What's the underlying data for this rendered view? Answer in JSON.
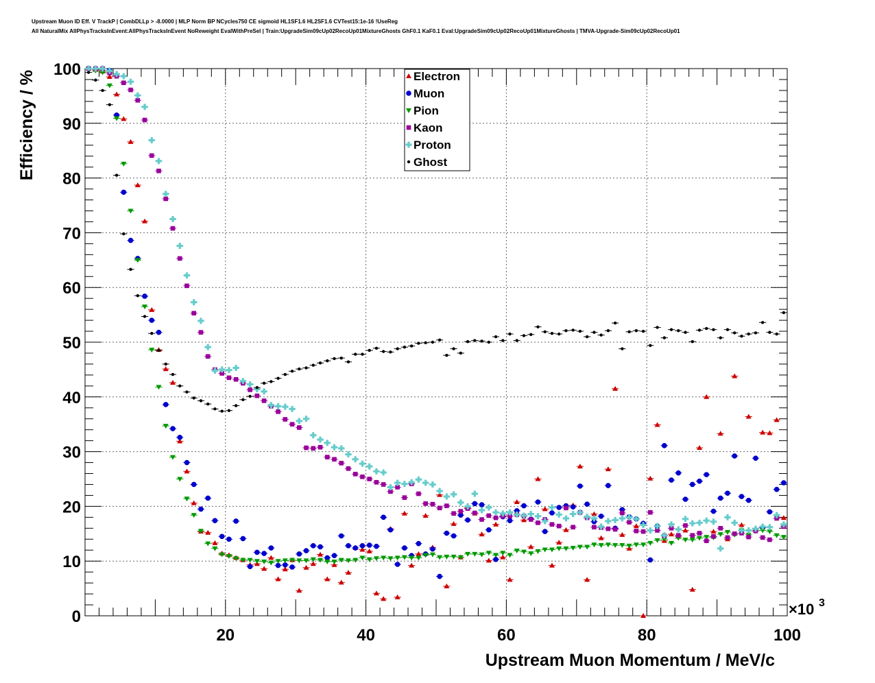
{
  "header": {
    "title_line1": "Upstream Muon ID Eff. V TrackP | CombDLLp > -8.0000 | MLP Norm BP NCycles750 CE sigmoid HL1SF1.6 HL2SF1.6 CVTest15:1e-16 !UseReg",
    "title_line2": "All NaturalMix AllPhysTracksInEvent:AllPhysTracksInEvent NoReweight EvalWithPreSel | Train:UpgradeSim09cUp02RecoUp01MixtureGhosts GhF0.1 KaF0.1 Eval:UpgradeSim09cUp02RecoUp01MixtureGhosts | TMVA-Upgrade-Sim09cUp02RecoUp01"
  },
  "chart_data": {
    "type": "scatter",
    "xlabel": "Upstream Muon Momentum / MeV/c",
    "ylabel": "Efficiency / %",
    "x_multiplier": "×10^3",
    "xlim": [
      0,
      100
    ],
    "ylim": [
      0,
      100
    ],
    "x_ticks": [
      20,
      40,
      60,
      80,
      100
    ],
    "y_ticks": [
      0,
      10,
      20,
      30,
      40,
      50,
      60,
      70,
      80,
      90,
      100
    ],
    "grid": true,
    "legend_position": "top-center",
    "x": [
      0.5,
      1.5,
      2.5,
      3.5,
      4.5,
      5.5,
      6.5,
      7.5,
      8.5,
      9.5,
      10.5,
      11.5,
      12.5,
      13.5,
      14.5,
      15.5,
      16.5,
      17.5,
      18.5,
      19.5,
      20.5,
      21.5,
      22.5,
      23.5,
      24.5,
      25.5,
      26.5,
      27.5,
      28.5,
      29.5,
      30.5,
      31.5,
      32.5,
      33.5,
      34.5,
      35.5,
      36.5,
      37.5,
      38.5,
      39.5,
      40.5,
      41.5,
      42.5,
      43.5,
      44.5,
      45.5,
      46.5,
      47.5,
      48.5,
      49.5,
      50.5,
      51.5,
      52.5,
      53.5,
      54.5,
      55.5,
      56.5,
      57.5,
      58.5,
      59.5,
      60.5,
      61.5,
      62.5,
      63.5,
      64.5,
      65.5,
      66.5,
      67.5,
      68.5,
      69.5,
      70.5,
      71.5,
      72.5,
      73.5,
      74.5,
      75.5,
      76.5,
      77.5,
      78.5,
      79.5,
      80.5,
      81.5,
      82.5,
      83.5,
      84.5,
      85.5,
      86.5,
      87.5,
      88.5,
      89.5,
      90.5,
      91.5,
      92.5,
      93.5,
      94.5,
      95.5,
      96.5,
      97.5,
      98.5,
      99.5
    ],
    "series": [
      {
        "name": "Electron",
        "color": "#cc0000",
        "marker": "triangle-up",
        "values": [
          100,
          99.8,
          99.5,
          98.5,
          95.3,
          90.8,
          86.6,
          78.7,
          72.1,
          55.9,
          48.6,
          45.1,
          42.6,
          31.9,
          26.4,
          20.6,
          15.4,
          15.2,
          13.3,
          11.4,
          11.1,
          10.6,
          10.2,
          9.3,
          9.5,
          8.6,
          10.6,
          6.7,
          8.5,
          10.2,
          4.6,
          8.8,
          9.5,
          11.2,
          6.7,
          9.3,
          6.1,
          7.9,
          12.4,
          12.1,
          11.8,
          4.1,
          3.1,
          15.9,
          3.4,
          18.7,
          9.2,
          11.3,
          18.3,
          12.5,
          22.1,
          5.4,
          16.8,
          10.7,
          19.7,
          18.7,
          14.9,
          10.1,
          16.7,
          10.7,
          6.6,
          20.8,
          17.5,
          12.6,
          25.0,
          19.5,
          9.2,
          13.4,
          15.7,
          20.2,
          27.3,
          6.6,
          18.6,
          14.2,
          26.8,
          41.5,
          14.8,
          12.3,
          16.4,
          0,
          25.1,
          34.9,
          13.7,
          14.9,
          14.5,
          15.6,
          4.8,
          30.7,
          40.0,
          15.4,
          33.3,
          14.0,
          43.8,
          16.6,
          36.4,
          16.0,
          33.5,
          33.4,
          35.8,
          17.9
        ]
      },
      {
        "name": "Muon",
        "color": "#0000cc",
        "marker": "circle",
        "values": [
          100,
          100,
          100,
          99.7,
          91.5,
          77.4,
          68.6,
          65.3,
          58.4,
          54.0,
          51.8,
          38.6,
          34.2,
          32.6,
          28.0,
          24.0,
          19.5,
          21.5,
          17.4,
          14.5,
          14.0,
          17.3,
          14.1,
          9.0,
          11.6,
          11.4,
          12.4,
          9.2,
          9.3,
          8.9,
          11.3,
          11.9,
          12.8,
          12.6,
          10.6,
          11.0,
          14.6,
          12.8,
          12.4,
          12.8,
          12.9,
          12.7,
          18.0,
          15.7,
          9.4,
          12.4,
          11.0,
          13.2,
          11.3,
          12.2,
          7.2,
          15.1,
          14.6,
          18.4,
          17.5,
          20.5,
          20.3,
          15.7,
          10.3,
          18.1,
          17.4,
          19.2,
          20.1,
          17.7,
          20.8,
          15.4,
          18.8,
          19.8,
          20.1,
          19.9,
          23.7,
          20.4,
          17.2,
          18.2,
          23.8,
          16.0,
          19.4,
          18.1,
          17.7,
          16.9,
          10.2,
          16.4,
          31.1,
          24.8,
          26.1,
          21.3,
          24.0,
          24.6,
          25.8,
          19.1,
          21.5,
          22.4,
          29.2,
          21.8,
          21.1,
          28.8,
          16.1,
          19.0,
          23.1,
          24.3
        ]
      },
      {
        "name": "Pion",
        "color": "#009900",
        "marker": "triangle-down",
        "values": [
          100,
          99.6,
          99.3,
          96.9,
          90.9,
          82.6,
          74.0,
          65.0,
          56.5,
          48.6,
          41.8,
          34.7,
          29.0,
          25.0,
          21.4,
          18.4,
          15.5,
          13.2,
          12.3,
          11.2,
          10.9,
          10.5,
          10.2,
          10.2,
          10.0,
          9.9,
          9.7,
          10.0,
          10.1,
          10.2,
          10.1,
          10.1,
          10.3,
          10.2,
          9.9,
          9.9,
          10.2,
          10.1,
          10.2,
          10.6,
          10.3,
          10.5,
          10.6,
          10.5,
          10.6,
          10.7,
          10.6,
          10.6,
          11.1,
          11.2,
          10.7,
          10.8,
          10.8,
          10.7,
          11.3,
          11.3,
          11.2,
          11.5,
          11.1,
          11.5,
          11.1,
          11.9,
          11.7,
          11.4,
          11.8,
          12.1,
          12.1,
          12.3,
          12.3,
          12.4,
          12.6,
          12.6,
          13.0,
          12.9,
          13.0,
          12.9,
          12.9,
          12.8,
          13.0,
          13.0,
          13.3,
          13.8,
          14.0,
          13.3,
          14.2,
          13.9,
          13.9,
          14.2,
          14.4,
          14.3,
          14.9,
          15.3,
          14.8,
          15.6,
          14.8,
          15.5,
          15.6,
          15.4,
          14.7,
          14.4
        ]
      },
      {
        "name": "Kaon",
        "color": "#990099",
        "marker": "square",
        "values": [
          100,
          100,
          100,
          99.2,
          98.6,
          97.4,
          96.1,
          94.2,
          90.6,
          84.1,
          81.3,
          76.2,
          70.8,
          65.3,
          60.3,
          55.3,
          51.8,
          47.4,
          45.0,
          44.3,
          43.5,
          43.2,
          42.5,
          41.3,
          40.2,
          39.3,
          38.3,
          37.3,
          35.9,
          35.0,
          34.4,
          30.7,
          30.6,
          30.8,
          29.0,
          28.6,
          27.9,
          26.9,
          25.9,
          25.4,
          25.0,
          24.4,
          24.0,
          22.7,
          23.5,
          21.6,
          24.1,
          22.3,
          20.5,
          20.4,
          19.7,
          20.1,
          18.7,
          19.1,
          19.6,
          18.8,
          17.6,
          18.3,
          17.9,
          18.2,
          18.2,
          18.5,
          18.2,
          17.6,
          17.0,
          17.6,
          16.7,
          16.4,
          19.7,
          16.2,
          18.9,
          17.9,
          16.2,
          16.1,
          15.9,
          15.8,
          18.8,
          17.1,
          15.5,
          15.4,
          18.9,
          15.6,
          14.6,
          16.0,
          14.7,
          16.5,
          14.7,
          15.1,
          13.7,
          14.5,
          16.0,
          14.3,
          15.0,
          15.1,
          14.4,
          15.5,
          14.3,
          13.9,
          17.8,
          16.3
        ]
      },
      {
        "name": "Proton",
        "color": "#66cccc",
        "marker": "cross",
        "values": [
          100,
          100,
          100,
          99.6,
          99.0,
          98.6,
          97.6,
          95.1,
          93.0,
          86.9,
          83.1,
          77.1,
          72.5,
          67.6,
          62.2,
          57.3,
          53.9,
          49.1,
          44.8,
          45.0,
          44.9,
          45.3,
          42.9,
          42.3,
          41.4,
          41.0,
          38.5,
          38.3,
          38.2,
          37.8,
          35.6,
          36.0,
          33.0,
          32.2,
          31.6,
          30.8,
          30.6,
          29.5,
          28.6,
          27.8,
          27.3,
          26.4,
          26.2,
          23.5,
          24.3,
          24.1,
          24.4,
          24.9,
          24.3,
          24.0,
          22.8,
          21.8,
          22.2,
          20.7,
          20.0,
          22.3,
          19.3,
          19.8,
          18.9,
          18.7,
          18.9,
          18.5,
          18.3,
          18.6,
          18.2,
          17.3,
          19.8,
          18.5,
          17.8,
          18.6,
          18.9,
          18.1,
          17.8,
          16.3,
          17.3,
          17.5,
          17.8,
          18.0,
          17.7,
          16.6,
          15.6,
          16.4,
          14.7,
          16.7,
          15.8,
          17.7,
          16.9,
          17.0,
          17.4,
          17.2,
          12.3,
          18.0,
          17.0,
          15.6,
          15.6,
          15.9,
          16.3,
          16.2,
          18.4,
          16.7
        ]
      },
      {
        "name": "Ghost",
        "color": "#000000",
        "marker": "small-circle",
        "values": [
          99.3,
          97.9,
          96.0,
          93.4,
          80.5,
          69.8,
          63.3,
          58.5,
          54.7,
          51.6,
          48.5,
          46.0,
          44.1,
          42.0,
          40.9,
          39.8,
          39.3,
          38.7,
          37.8,
          37.4,
          37.5,
          38.4,
          39.5,
          40.1,
          41.7,
          42.5,
          42.8,
          43.4,
          44.1,
          44.7,
          45.1,
          45.3,
          45.8,
          46.2,
          46.6,
          47.0,
          47.1,
          46.4,
          47.8,
          47.8,
          48.5,
          48.9,
          48.3,
          48.2,
          48.8,
          49.1,
          49.3,
          49.8,
          49.9,
          50.0,
          50.4,
          47.6,
          48.8,
          48.0,
          50.1,
          50.3,
          50.2,
          50.0,
          51.0,
          50.3,
          51.5,
          50.3,
          51.2,
          51.4,
          52.8,
          51.9,
          51.6,
          51.5,
          52.1,
          52.2,
          52.0,
          51.0,
          51.8,
          51.3,
          52.1,
          53.5,
          48.8,
          51.9,
          52.1,
          52.0,
          49.4,
          52.7,
          50.8,
          52.3,
          52.1,
          51.8,
          50.1,
          52.2,
          52.5,
          52.3,
          50.8,
          52.3,
          51.7,
          51.1,
          51.5,
          51.7,
          53.6,
          51.8,
          51.5,
          55.4
        ]
      }
    ]
  }
}
